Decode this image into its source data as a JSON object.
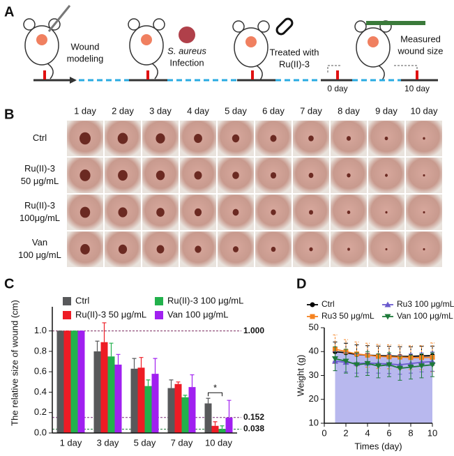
{
  "panel_a": {
    "label": "A",
    "wound": [
      "Wound",
      "modeling"
    ],
    "infection": [
      "S. aureus",
      "Infection"
    ],
    "treated": [
      "Treated  with",
      "Ru(II)-3"
    ],
    "measured": [
      "Measured",
      "wound size"
    ],
    "day0": "0 day",
    "day10": "10 day"
  },
  "panel_b": {
    "label": "B",
    "columns": [
      "1 day",
      "2 day",
      "3 day",
      "4 day",
      "5 day",
      "6 day",
      "7 day",
      "8 day",
      "9 day",
      "10 day"
    ],
    "rows": [
      [
        "Ctrl"
      ],
      [
        "Ru(II)-3",
        "50 μg/mL"
      ],
      [
        "Ru(II)-3",
        "100μg/mL"
      ],
      [
        "Van",
        "100 μg/mL"
      ]
    ]
  },
  "chart_data": [
    {
      "type": "bar",
      "panel_label": "C",
      "ylabel": "The relative size of wound (cm)",
      "categories": [
        "1 day",
        "3 day",
        "5 day",
        "7 day",
        "10 day"
      ],
      "series": [
        {
          "name": "Ctrl",
          "color": "#58595b",
          "values": [
            1.0,
            0.8,
            0.63,
            0.44,
            0.29
          ],
          "errors": [
            0,
            0.1,
            0.1,
            0.08,
            0.05
          ]
        },
        {
          "name": "Ru(II)-3 50 μg/mL",
          "color": "#ee1c25",
          "values": [
            1.0,
            0.89,
            0.64,
            0.48,
            0.07
          ],
          "errors": [
            0,
            0.19,
            0.1,
            0.02,
            0.04
          ]
        },
        {
          "name": "Ru(II)-3 100 μg/mL",
          "color": "#22b14c",
          "values": [
            1.0,
            0.75,
            0.46,
            0.35,
            0.04
          ],
          "errors": [
            0,
            0.13,
            0.06,
            0.02,
            0.03
          ]
        },
        {
          "name": "Van 100 μg/mL",
          "color": "#a020f0",
          "values": [
            1.0,
            0.67,
            0.58,
            0.45,
            0.15
          ],
          "errors": [
            0,
            0.1,
            0.15,
            0.12,
            0.17
          ]
        }
      ],
      "ylim": [
        0,
        1.1
      ],
      "yticks": [
        {
          "value": 0,
          "label": "0.0"
        },
        {
          "value": 0.2,
          "label": "0.2"
        },
        {
          "value": 0.4,
          "label": "0.4"
        },
        {
          "value": 0.6,
          "label": "0.6"
        },
        {
          "value": 0.8,
          "label": "0.8"
        },
        {
          "value": 1,
          "label": "1.0"
        }
      ],
      "reference_lines": [
        {
          "value": 1,
          "label": "1.000",
          "color": "#7a2a5e"
        },
        {
          "value": 0.152,
          "label": "0.152",
          "color": "#7a2a7a"
        },
        {
          "value": 0.038,
          "label": "0.038",
          "color": "#1e7a3a"
        }
      ],
      "significance_mark": "*"
    },
    {
      "type": "line",
      "panel_label": "D",
      "xlabel": "Times (day)",
      "ylabel": "Weight (g)",
      "x": [
        1,
        2,
        3,
        4,
        5,
        6,
        7,
        8,
        9,
        10
      ],
      "xlim": [
        0,
        10
      ],
      "xticks": [
        0,
        2,
        4,
        6,
        8,
        10
      ],
      "ylim": [
        10,
        50
      ],
      "yticks": [
        10,
        20,
        30,
        40,
        50
      ],
      "series": [
        {
          "name": "Ctrl",
          "color": "#000000",
          "marker": "circle",
          "area": true,
          "values": [
            40,
            39.5,
            38.8,
            38.5,
            38.3,
            38.2,
            38,
            38,
            38.2,
            38.3
          ],
          "errors": [
            4,
            4,
            4,
            4,
            4,
            4,
            4,
            4,
            4,
            4
          ]
        },
        {
          "name": "Ru3 50 μg/mL",
          "color": "#f5821f",
          "marker": "square",
          "values": [
            41,
            40,
            39,
            38.5,
            38,
            37.8,
            37.7,
            37.5,
            37.5,
            37.6
          ],
          "errors": [
            6,
            5,
            5,
            5,
            5,
            5,
            5,
            5,
            5,
            6
          ]
        },
        {
          "name": "Ru3 100 μg/mL",
          "color": "#6a5acd",
          "marker": "triangle",
          "values": [
            36,
            35.5,
            35,
            35.2,
            35,
            34.8,
            34.5,
            35,
            35.5,
            35.8
          ],
          "errors": [
            4,
            4,
            4,
            4,
            4,
            4,
            4,
            4,
            4,
            4
          ]
        },
        {
          "name": "Van 100 μg/mL",
          "color": "#1e7a3a",
          "marker": "triangle-down",
          "values": [
            37,
            36,
            34.5,
            35,
            34,
            34.5,
            33,
            33.5,
            34,
            34.5
          ],
          "errors": [
            5,
            5,
            5,
            5,
            5,
            5,
            5,
            5,
            5,
            5
          ]
        }
      ]
    }
  ]
}
